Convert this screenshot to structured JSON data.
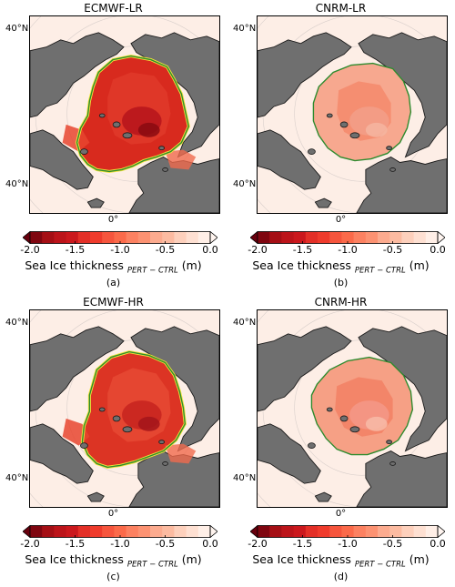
{
  "panels": [
    {
      "title": "ECMWF-LR",
      "label": "(a)"
    },
    {
      "title": "CNRM-LR",
      "label": "(b)"
    },
    {
      "title": "ECMWF-HR",
      "label": "(c)"
    },
    {
      "title": "CNRM-HR",
      "label": "(d)"
    }
  ],
  "map": {
    "lat_label_top": "40°N",
    "lat_label_bottom": "40°N",
    "lon_label": "0°"
  },
  "colorbar": {
    "ticks": [
      "-2.0",
      "-1.5",
      "-1.0",
      "-0.5",
      "0.0"
    ],
    "label_main": "Sea Ice thickness",
    "label_sub": "PERT − CTRL",
    "label_unit": "(m)",
    "range": [
      -2.0,
      0.0
    ],
    "extend": "both",
    "colors": [
      "#67000d",
      "#7f0610",
      "#a50f15",
      "#bc141a",
      "#cb181d",
      "#e32f27",
      "#ef3b2c",
      "#f6553d",
      "#fb6a4a",
      "#fc8161",
      "#fc9272",
      "#fcab8f",
      "#fcbba1",
      "#fdd0bc",
      "#fee0d2",
      "#ffefe7",
      "#fff5f0"
    ]
  }
}
